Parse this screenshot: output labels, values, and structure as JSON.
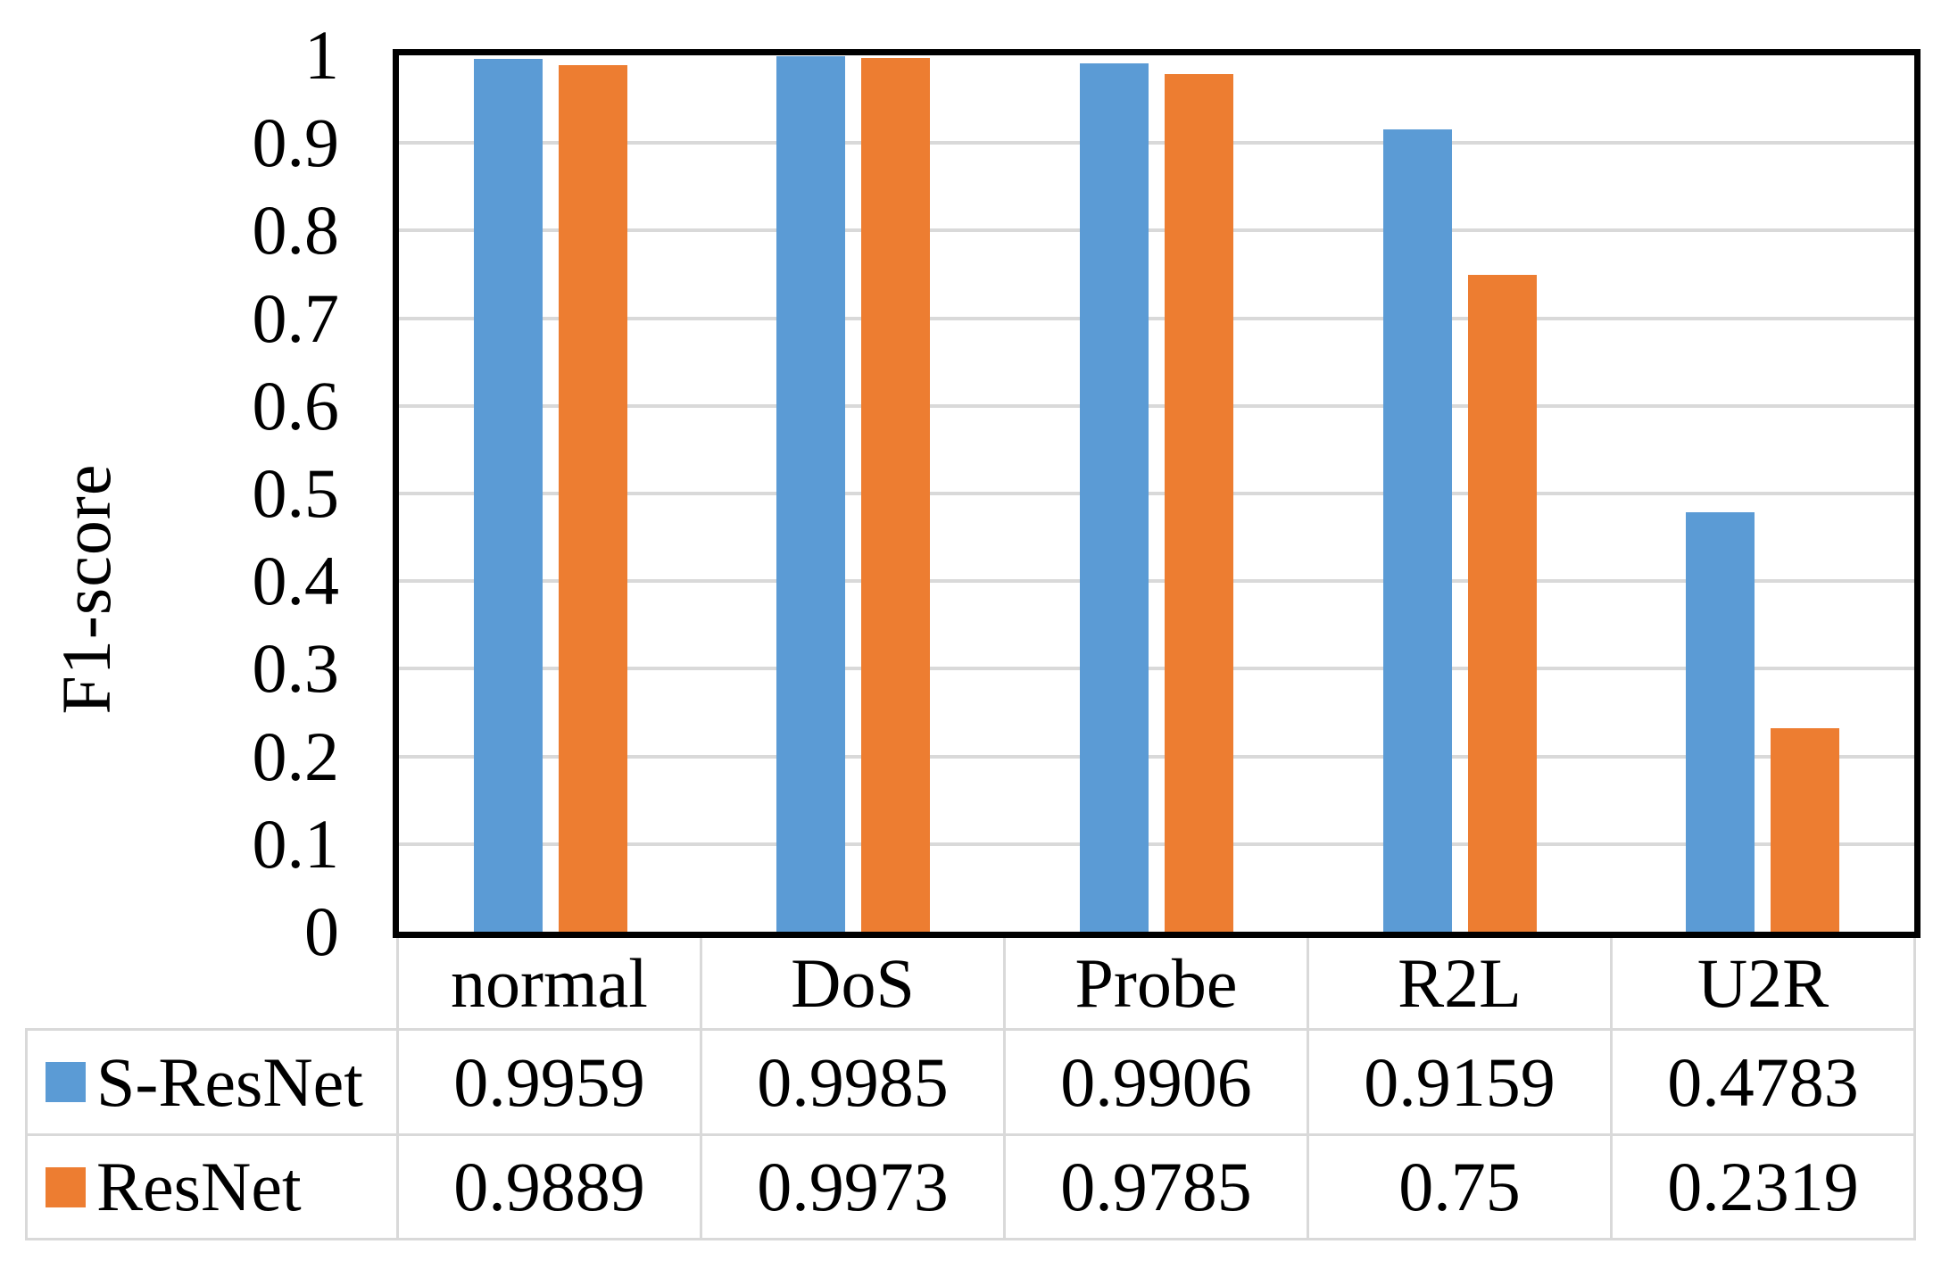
{
  "y_axis": {
    "title": "F1-score",
    "ticks": [
      "1",
      "0.9",
      "0.8",
      "0.7",
      "0.6",
      "0.5",
      "0.4",
      "0.3",
      "0.2",
      "0.1",
      "0"
    ]
  },
  "chart_data": {
    "type": "bar",
    "title": "",
    "xlabel": "",
    "ylabel": "F1-score",
    "categories": [
      "normal",
      "DoS",
      "Probe",
      "R2L",
      "U2R"
    ],
    "series": [
      {
        "name": "S-ResNet",
        "color": "#5B9BD5",
        "values": [
          0.9959,
          0.9985,
          0.9906,
          0.9159,
          0.4783
        ]
      },
      {
        "name": "ResNet",
        "color": "#ED7D31",
        "values": [
          0.9889,
          0.9973,
          0.9785,
          0.75,
          0.2319
        ]
      }
    ],
    "ylim": [
      0,
      1
    ],
    "ytick_step": 0.1,
    "grid": true,
    "gridline_values": [
      0.1,
      0.2,
      0.3,
      0.4,
      0.5,
      0.6,
      0.7,
      0.8,
      0.9
    ],
    "legend_position": "data-table-left-column"
  },
  "table": {
    "header": [
      "",
      "normal",
      "DoS",
      "Probe",
      "R2L",
      "U2R"
    ],
    "rows": [
      {
        "label": "S-ResNet",
        "swatch": "#5B9BD5",
        "values": [
          "0.9959",
          "0.9985",
          "0.9906",
          "0.9159",
          "0.4783"
        ]
      },
      {
        "label": "ResNet",
        "swatch": "#ED7D31",
        "values": [
          "0.9889",
          "0.9973",
          "0.9785",
          "0.75",
          "0.2319"
        ]
      }
    ]
  },
  "colors": {
    "sresnet_blue": "#5B9BD5",
    "resnet_orange": "#ED7D31",
    "gridline": "#D9D9D9",
    "table_border": "#D9D9D9",
    "axis_line": "#000000",
    "background": "#FFFFFF"
  }
}
